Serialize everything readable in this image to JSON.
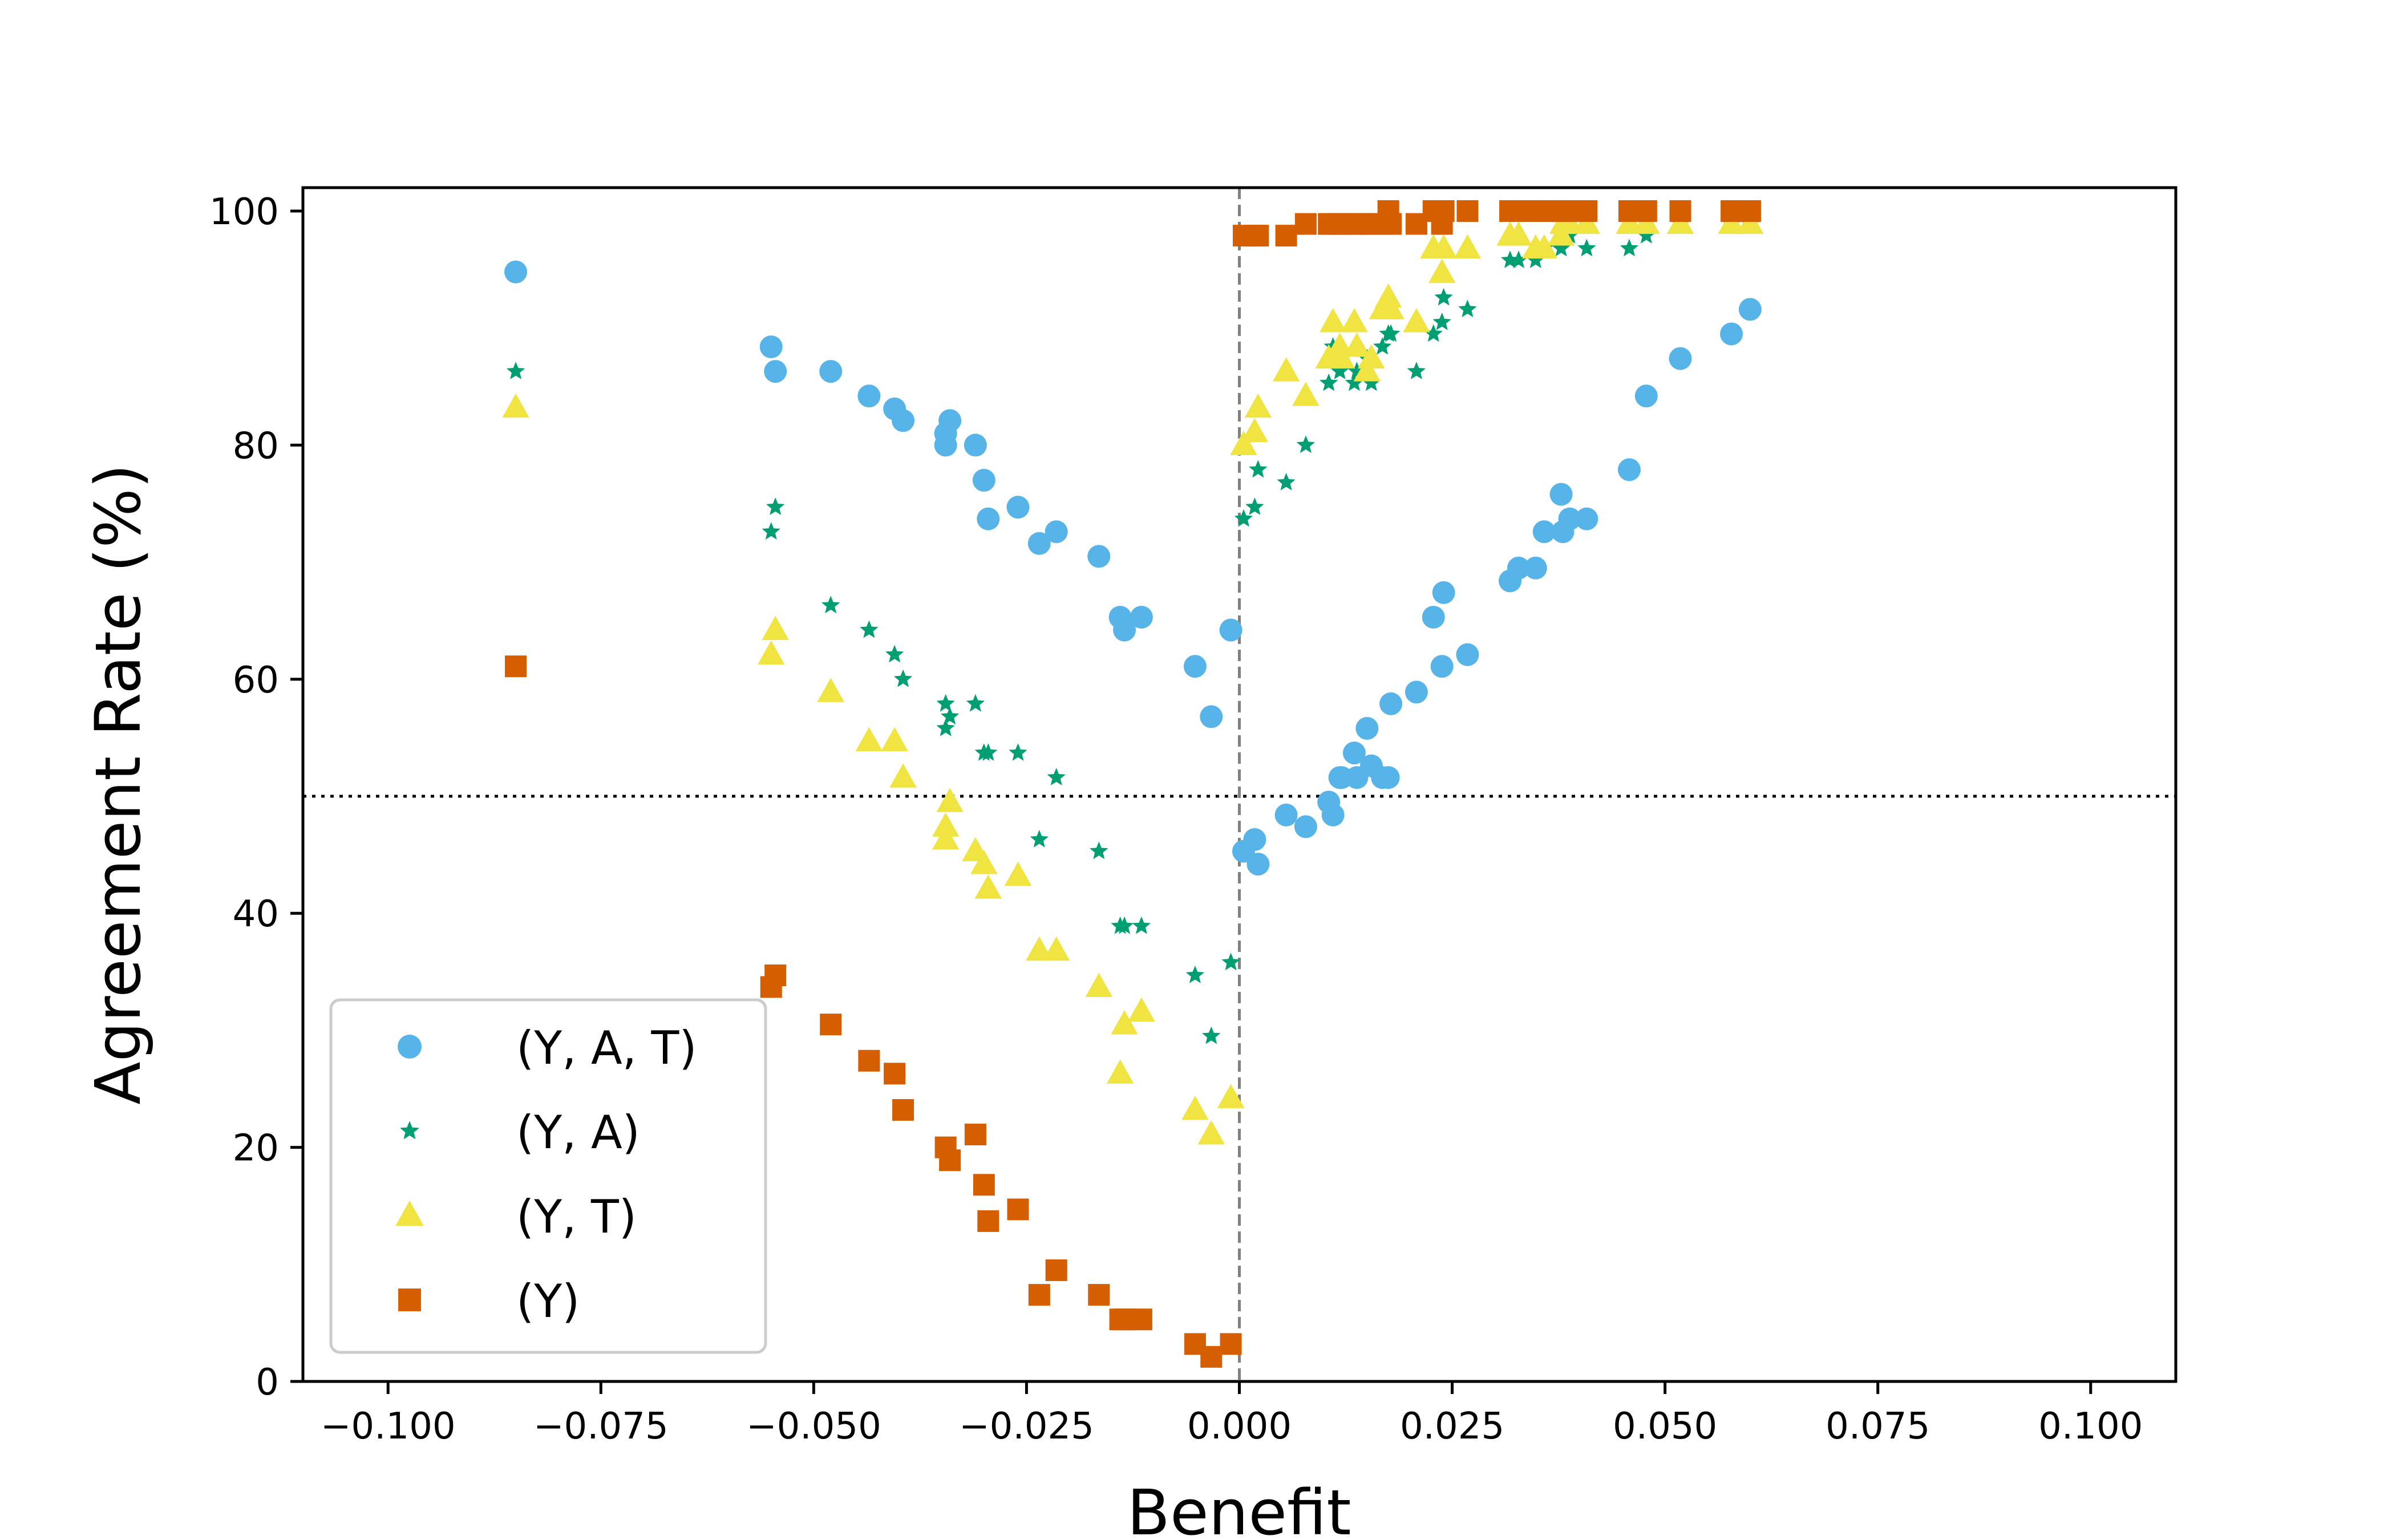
{
  "chart_data": {
    "type": "scatter",
    "title": "",
    "xlabel": "Benefit",
    "ylabel": "Agreement Rate (%)",
    "xlim": [
      -0.11,
      0.11
    ],
    "ylim": [
      0,
      102
    ],
    "xticks": [
      -0.1,
      -0.075,
      -0.05,
      -0.025,
      0.0,
      0.025,
      0.05,
      0.075,
      0.1
    ],
    "xtick_labels": [
      "−0.100",
      "−0.075",
      "−0.050",
      "−0.025",
      "0.000",
      "0.025",
      "0.050",
      "0.075",
      "0.100"
    ],
    "yticks": [
      0,
      20,
      40,
      60,
      80,
      100
    ],
    "ytick_labels": [
      "0",
      "20",
      "40",
      "60",
      "80",
      "100"
    ],
    "grid": false,
    "legend_position": "lower-left",
    "reference_lines": {
      "horizontal": {
        "y": 50,
        "style": "dotted",
        "color": "#000000"
      },
      "vertical": {
        "x": 0.0,
        "style": "dashed",
        "color": "#808080"
      }
    },
    "series": [
      {
        "name": "(Y, A, T)",
        "marker": "circle",
        "color": "#56b4e9",
        "x": [
          -0.085,
          -0.055,
          -0.0545,
          -0.048,
          -0.0435,
          -0.0405,
          -0.0395,
          -0.0345,
          -0.0345,
          -0.034,
          -0.031,
          -0.03,
          -0.0295,
          -0.026,
          -0.0235,
          -0.0215,
          -0.0165,
          -0.014,
          -0.0135,
          -0.0115,
          -0.0052,
          -0.0033,
          -0.001,
          0.0005,
          0.0018,
          0.0022,
          0.0055,
          0.0078,
          0.0105,
          0.011,
          0.0118,
          0.012,
          0.0135,
          0.0138,
          0.015,
          0.0155,
          0.0168,
          0.0175,
          0.0178,
          0.0208,
          0.0228,
          0.0238,
          0.024,
          0.0268,
          0.0318,
          0.0328,
          0.0348,
          0.0358,
          0.0378,
          0.038,
          0.0388,
          0.0408,
          0.0458,
          0.0478,
          0.0518,
          0.0578,
          0.06
        ],
        "y": [
          94.8,
          88.4,
          86.3,
          86.3,
          84.2,
          83.1,
          82.1,
          80.0,
          81.0,
          82.1,
          80.0,
          77.0,
          73.7,
          74.7,
          71.6,
          72.6,
          70.5,
          65.3,
          64.2,
          65.3,
          61.1,
          56.8,
          64.2,
          45.3,
          46.3,
          44.2,
          48.4,
          47.4,
          49.5,
          48.4,
          51.6,
          51.6,
          53.7,
          51.6,
          55.8,
          52.6,
          51.6,
          51.6,
          57.9,
          58.9,
          65.3,
          61.1,
          67.4,
          62.1,
          68.4,
          69.5,
          69.5,
          72.6,
          75.8,
          72.6,
          73.7,
          73.7,
          77.9,
          84.2,
          87.4,
          89.5,
          91.6
        ]
      },
      {
        "name": "(Y, A)",
        "marker": "star",
        "color": "#009e73",
        "x": [
          -0.085,
          -0.055,
          -0.0545,
          -0.048,
          -0.0435,
          -0.0405,
          -0.0395,
          -0.0345,
          -0.0345,
          -0.034,
          -0.031,
          -0.03,
          -0.0295,
          -0.026,
          -0.0235,
          -0.0215,
          -0.0165,
          -0.014,
          -0.0135,
          -0.0115,
          -0.0052,
          -0.0033,
          -0.001,
          0.0005,
          0.0018,
          0.0022,
          0.0055,
          0.0078,
          0.0105,
          0.011,
          0.0118,
          0.012,
          0.0135,
          0.0138,
          0.015,
          0.0155,
          0.0168,
          0.0175,
          0.0178,
          0.0208,
          0.0228,
          0.0238,
          0.024,
          0.0268,
          0.0318,
          0.0328,
          0.0348,
          0.0358,
          0.0378,
          0.038,
          0.0388,
          0.0408,
          0.0458,
          0.0478,
          0.0518,
          0.0578,
          0.06
        ],
        "y": [
          86.3,
          72.6,
          74.7,
          66.3,
          64.2,
          62.1,
          60.0,
          55.8,
          57.9,
          56.8,
          57.9,
          53.7,
          53.7,
          53.7,
          46.3,
          51.6,
          45.3,
          38.9,
          38.9,
          38.9,
          34.7,
          29.5,
          35.8,
          73.7,
          74.7,
          77.9,
          76.8,
          80.0,
          85.3,
          88.4,
          86.3,
          87.4,
          85.3,
          86.3,
          87.4,
          85.3,
          88.4,
          89.5,
          89.5,
          86.3,
          89.5,
          90.5,
          92.6,
          91.6,
          95.8,
          95.8,
          95.8,
          96.8,
          96.8,
          97.9,
          97.9,
          96.8,
          96.8,
          97.9,
          98.9,
          98.9,
          98.9
        ]
      },
      {
        "name": "(Y, T)",
        "marker": "triangle",
        "color": "#f0e442",
        "x": [
          -0.085,
          -0.055,
          -0.0545,
          -0.048,
          -0.0435,
          -0.0405,
          -0.0395,
          -0.0345,
          -0.0345,
          -0.034,
          -0.031,
          -0.03,
          -0.0295,
          -0.026,
          -0.0235,
          -0.0215,
          -0.0165,
          -0.014,
          -0.0135,
          -0.0115,
          -0.0052,
          -0.0033,
          -0.001,
          0.0005,
          0.0018,
          0.0022,
          0.0055,
          0.0078,
          0.0105,
          0.011,
          0.0118,
          0.012,
          0.0135,
          0.0138,
          0.015,
          0.0155,
          0.0168,
          0.0175,
          0.0178,
          0.0208,
          0.0228,
          0.0238,
          0.024,
          0.0268,
          0.0318,
          0.0328,
          0.0348,
          0.0358,
          0.0378,
          0.038,
          0.0388,
          0.0408,
          0.0458,
          0.0478,
          0.0518,
          0.0578,
          0.06
        ],
        "y": [
          83.2,
          62.1,
          64.2,
          58.9,
          54.7,
          54.7,
          51.6,
          46.3,
          47.4,
          49.5,
          45.3,
          44.2,
          42.1,
          43.2,
          36.8,
          36.8,
          33.7,
          26.3,
          30.5,
          31.6,
          23.2,
          21.1,
          24.2,
          80.0,
          81.1,
          83.2,
          86.3,
          84.2,
          87.4,
          90.5,
          88.4,
          87.4,
          90.5,
          88.4,
          86.3,
          87.4,
          91.6,
          92.6,
          91.6,
          90.5,
          96.8,
          94.7,
          96.8,
          96.8,
          97.9,
          97.9,
          96.8,
          96.8,
          97.9,
          98.9,
          98.9,
          98.9,
          98.9,
          98.9,
          98.9,
          98.9,
          98.9
        ]
      },
      {
        "name": "(Y)",
        "marker": "square",
        "color": "#d55e00",
        "x": [
          -0.085,
          -0.055,
          -0.0545,
          -0.048,
          -0.0435,
          -0.0405,
          -0.0395,
          -0.0345,
          -0.034,
          -0.031,
          -0.03,
          -0.0295,
          -0.026,
          -0.0235,
          -0.0215,
          -0.0165,
          -0.014,
          -0.0135,
          -0.0115,
          -0.0052,
          -0.0033,
          -0.001,
          0.0005,
          0.0018,
          0.0022,
          0.0055,
          0.0078,
          0.0105,
          0.011,
          0.0118,
          0.012,
          0.0135,
          0.0138,
          0.015,
          0.0155,
          0.0168,
          0.0175,
          0.0178,
          0.0208,
          0.0228,
          0.0238,
          0.024,
          0.0268,
          0.0318,
          0.0328,
          0.0348,
          0.0358,
          0.0378,
          0.038,
          0.0388,
          0.0408,
          0.0458,
          0.0478,
          0.0518,
          0.0578,
          0.06
        ],
        "y": [
          61.1,
          33.7,
          34.7,
          30.5,
          27.4,
          26.3,
          23.2,
          20.0,
          18.9,
          21.1,
          16.8,
          13.7,
          14.7,
          7.4,
          9.5,
          7.4,
          5.3,
          5.3,
          5.3,
          3.2,
          2.1,
          3.2,
          97.9,
          97.9,
          97.9,
          97.9,
          98.9,
          98.9,
          98.9,
          98.9,
          98.9,
          98.9,
          98.9,
          98.9,
          98.9,
          98.9,
          100.0,
          98.9,
          98.9,
          100.0,
          98.9,
          100.0,
          100.0,
          100.0,
          100.0,
          100.0,
          100.0,
          100.0,
          100.0,
          100.0,
          100.0,
          100.0,
          100.0,
          100.0,
          100.0,
          100.0
        ]
      }
    ]
  }
}
